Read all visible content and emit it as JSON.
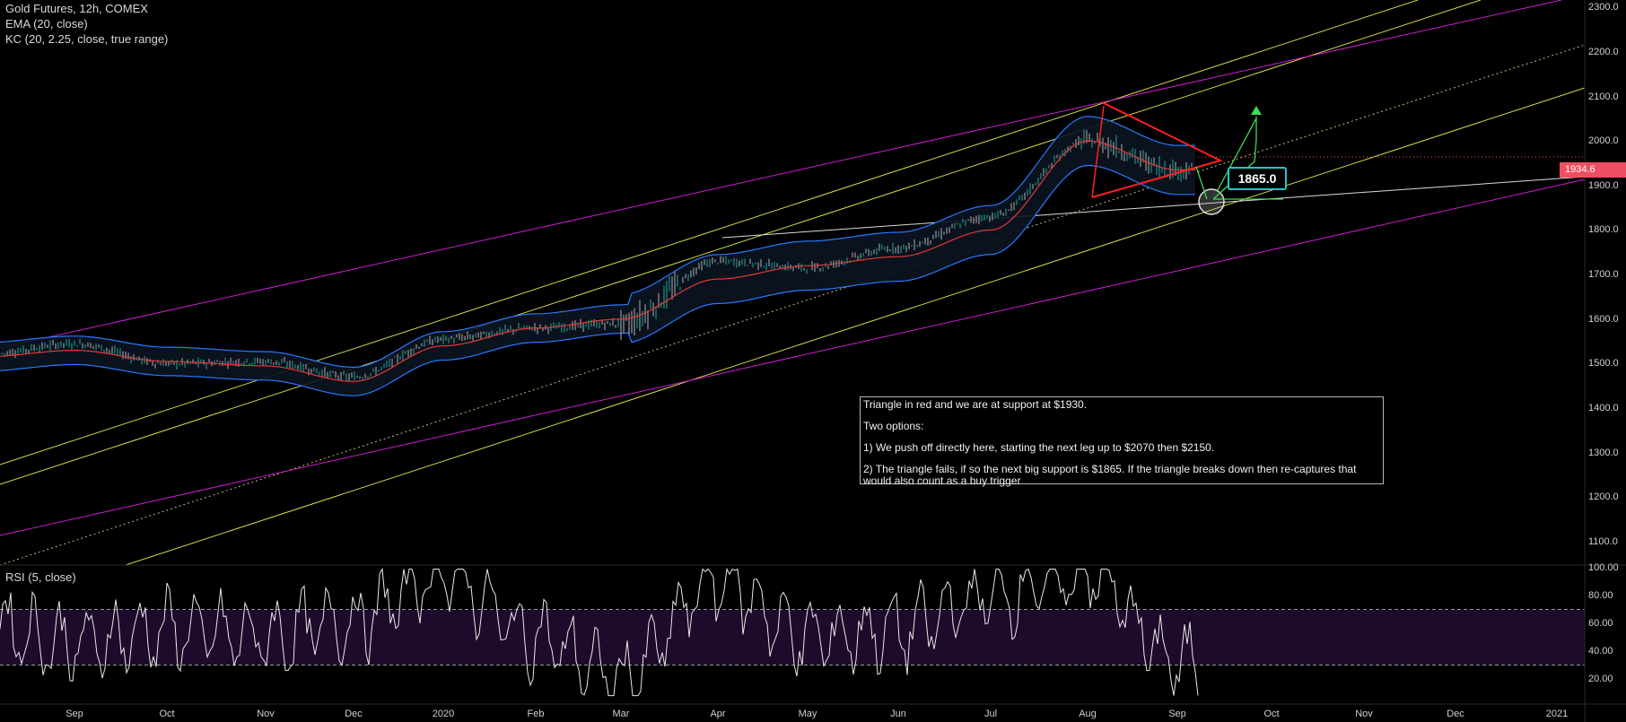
{
  "legend": {
    "symbol": "Gold Futures, 12h, COMEX",
    "ema": "EMA (20, close)",
    "kc": "KC (20, 2.25, close, true range)",
    "rsi": "RSI (5, close)"
  },
  "note": {
    "line1": "Triangle in red and we are at support at $1930.",
    "line2": "Two options:",
    "line3": "1) We push off directly here, starting the next leg up to $2070 then $2150.",
    "line4": "2) The triangle fails, if so the next big support is $1865.  If the triangle breaks down then re-captures that would also count as a buy trigger"
  },
  "callout": "1865.0",
  "last_price_label": "1934.6",
  "colors": {
    "background": "#000000",
    "candle_up": "#26a69a",
    "candle_down": "#b0b0b0",
    "ema": "#e53935",
    "keltner": "#2979ff",
    "channel_yellow": "#d6d64a",
    "channel_magenta": "#d01cd0",
    "triangle": "#ff2020",
    "rsi_line": "#e8e8e8",
    "rsi_band": "#1e0a2a",
    "price_label": "#ef4e62",
    "callout_border": "#22c7c7"
  },
  "chart_data": [
    {
      "type": "line",
      "title": "Gold Futures, 12h, COMEX",
      "series": [
        {
          "name": "EMA (20, close)",
          "x": [
            "Aug",
            "Sep",
            "Oct",
            "Nov",
            "Dec",
            "2020",
            "Feb",
            "Mar",
            "Apr",
            "May",
            "Jun",
            "Jul",
            "Aug",
            "Sep"
          ],
          "values": [
            1515,
            1530,
            1505,
            1495,
            1460,
            1540,
            1580,
            1600,
            1690,
            1720,
            1740,
            1800,
            2000,
            1935
          ]
        }
      ],
      "close": {
        "x": [
          "Aug",
          "Sep",
          "Oct",
          "Nov",
          "Dec",
          "2020",
          "Feb",
          "Mar",
          "Apr",
          "May",
          "Jun",
          "Jul",
          "Aug",
          "Sep"
        ],
        "values": [
          1520,
          1545,
          1500,
          1505,
          1470,
          1555,
          1580,
          1590,
          1730,
          1715,
          1760,
          1830,
          2000,
          1934.6
        ]
      },
      "y_ticks": [
        1100,
        1200,
        1300,
        1400,
        1500,
        1600,
        1700,
        1800,
        1900,
        2000,
        2100,
        2200,
        2300
      ],
      "x_ticks": [
        "Sep",
        "Oct",
        "Nov",
        "Dec",
        "2020",
        "Feb",
        "Mar",
        "Apr",
        "May",
        "Jun",
        "Jul",
        "Aug",
        "Sep",
        "Oct",
        "Nov",
        "Dec",
        "2021"
      ],
      "ylim": [
        1045,
        2310
      ],
      "last_price": 1934.6,
      "annotations": {
        "callout_value": 1865.0,
        "triangle": "red",
        "channels": "yellow and magenta parallel channels"
      }
    },
    {
      "type": "line",
      "title": "RSI (5, close)",
      "y_ticks": [
        20,
        40,
        60,
        80,
        100
      ],
      "ylim": [
        0,
        100
      ],
      "bands": [
        30,
        70
      ],
      "series": [
        {
          "name": "RSI (5, close)",
          "x": [
            "Aug",
            "Sep",
            "Oct",
            "Nov",
            "Dec",
            "2020",
            "Feb",
            "Mar",
            "Apr",
            "May",
            "Jun",
            "Jul",
            "Aug",
            "Sep"
          ],
          "values": [
            60,
            45,
            55,
            50,
            62,
            95,
            50,
            20,
            90,
            50,
            55,
            80,
            95,
            32
          ]
        }
      ]
    }
  ]
}
